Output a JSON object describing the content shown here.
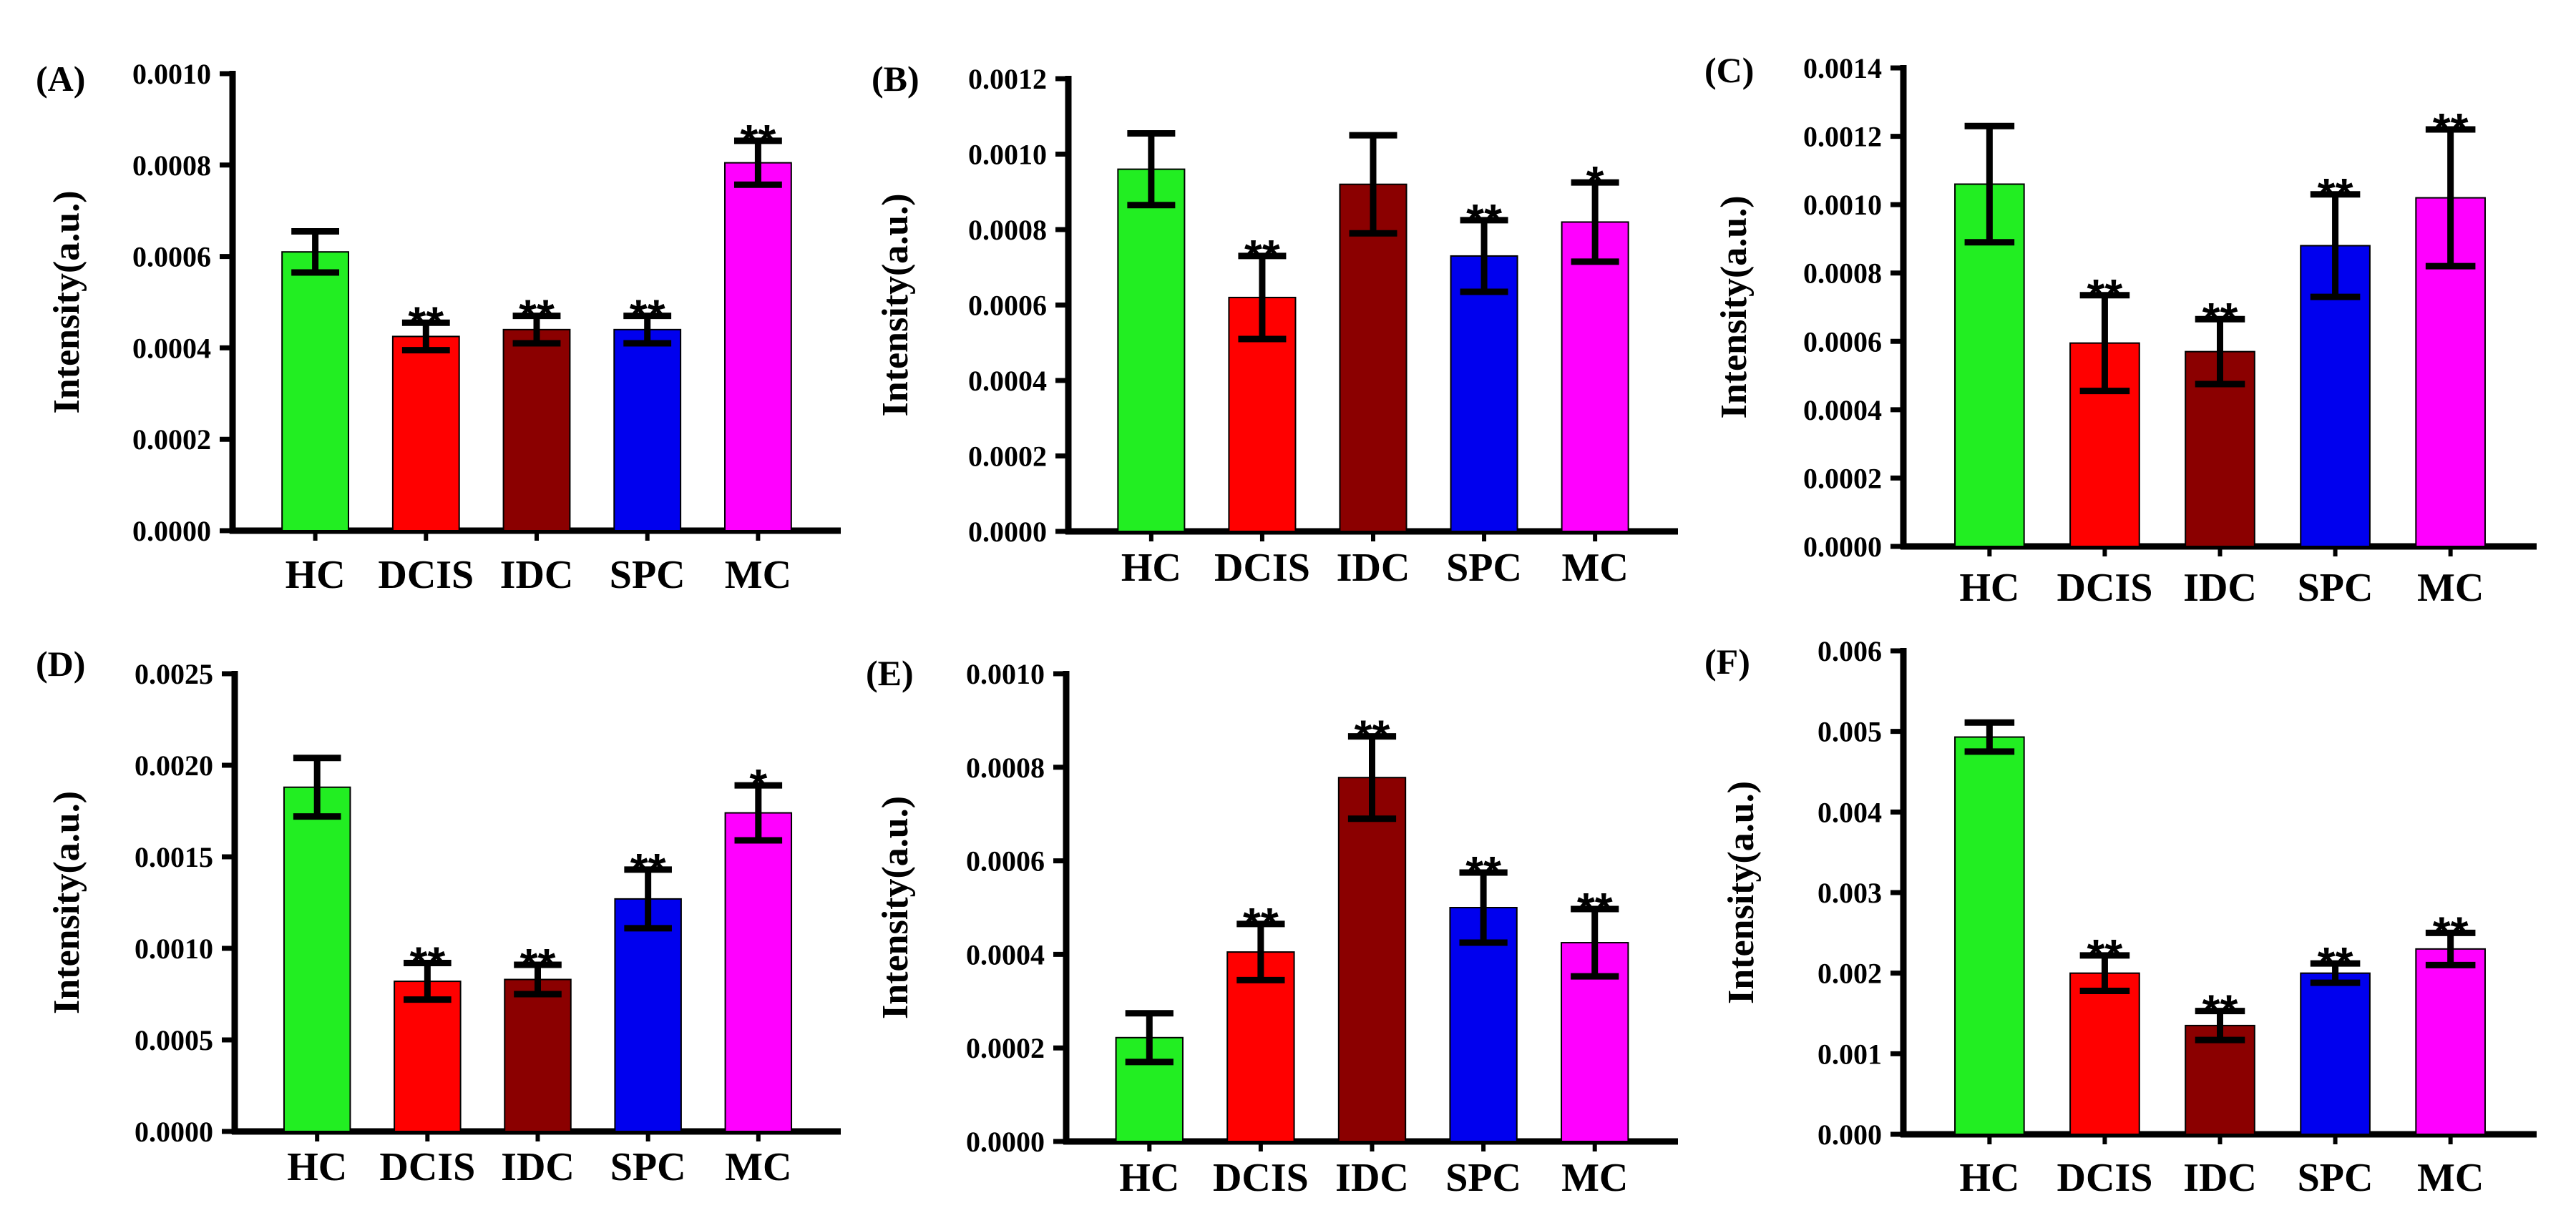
{
  "colors": {
    "HC": "#22ee22",
    "DCIS": "#ff0000",
    "IDC": "#8b0000",
    "SPC": "#0000ee",
    "MC": "#ff00ff",
    "axis": "#000000",
    "error_bar": "#000000"
  },
  "chart_data": [
    {
      "type": "bar",
      "panel": "(A)",
      "categories": [
        "HC",
        "DCIS",
        "IDC",
        "SPC",
        "MC"
      ],
      "values": [
        0.00061,
        0.000425,
        0.00044,
        0.00044,
        0.000805
      ],
      "errors": [
        4.5e-05,
        3e-05,
        3e-05,
        3e-05,
        4.8e-05
      ],
      "significance": [
        "",
        "**",
        "**",
        "**",
        "**"
      ],
      "ylabel": "Intensity(a.u.)",
      "ylim": [
        0,
        0.001
      ],
      "yticks": [
        "0.0000",
        "0.0002",
        "0.0004",
        "0.0006",
        "0.0008",
        "0.0010"
      ]
    },
    {
      "type": "bar",
      "panel": "(B)",
      "categories": [
        "HC",
        "DCIS",
        "IDC",
        "SPC",
        "MC"
      ],
      "values": [
        0.00096,
        0.00062,
        0.00092,
        0.00073,
        0.00082
      ],
      "errors": [
        9.5e-05,
        0.00011,
        0.00013,
        9.5e-05,
        0.000105
      ],
      "significance": [
        "",
        "**",
        "",
        "**",
        "*"
      ],
      "ylabel": "Intensity(a.u.)",
      "ylim": [
        0,
        0.0012
      ],
      "yticks": [
        "0.0000",
        "0.0002",
        "0.0004",
        "0.0006",
        "0.0008",
        "0.0010",
        "0.0012"
      ]
    },
    {
      "type": "bar",
      "panel": "(C)",
      "categories": [
        "HC",
        "DCIS",
        "IDC",
        "SPC",
        "MC"
      ],
      "values": [
        0.00106,
        0.000595,
        0.00057,
        0.00088,
        0.00102
      ],
      "errors": [
        0.00017,
        0.00014,
        9.5e-05,
        0.00015,
        0.0002
      ],
      "significance": [
        "",
        "**",
        "**",
        "**",
        "**"
      ],
      "ylabel": "Intensity(a.u.)",
      "ylim": [
        0,
        0.0014
      ],
      "yticks": [
        "0.0000",
        "0.0002",
        "0.0004",
        "0.0006",
        "0.0008",
        "0.0010",
        "0.0012",
        "0.0014"
      ]
    },
    {
      "type": "bar",
      "panel": "(D)",
      "categories": [
        "HC",
        "DCIS",
        "IDC",
        "SPC",
        "MC"
      ],
      "values": [
        0.00188,
        0.00082,
        0.00083,
        0.00127,
        0.00174
      ],
      "errors": [
        0.00016,
        0.0001,
        8e-05,
        0.00016,
        0.00015
      ],
      "significance": [
        "",
        "**",
        "**",
        "**",
        "*"
      ],
      "ylabel": "Intensity(a.u.)",
      "ylim": [
        0,
        0.0025
      ],
      "yticks": [
        "0.0000",
        "0.0005",
        "0.0010",
        "0.0015",
        "0.0020",
        "0.0025"
      ]
    },
    {
      "type": "bar",
      "panel": "(E)",
      "categories": [
        "HC",
        "DCIS",
        "IDC",
        "SPC",
        "MC"
      ],
      "values": [
        0.000222,
        0.000405,
        0.000778,
        0.0005,
        0.000425
      ],
      "errors": [
        5.2e-05,
        6e-05,
        8.8e-05,
        7.5e-05,
        7.2e-05
      ],
      "significance": [
        "",
        "**",
        "**",
        "**",
        "**"
      ],
      "ylabel": "Intensity(a.u.)",
      "ylim": [
        0,
        0.001
      ],
      "yticks": [
        "0.0000",
        "0.0002",
        "0.0004",
        "0.0006",
        "0.0008",
        "0.0010"
      ]
    },
    {
      "type": "bar",
      "panel": "(F)",
      "categories": [
        "HC",
        "DCIS",
        "IDC",
        "SPC",
        "MC"
      ],
      "values": [
        0.00493,
        0.002,
        0.00135,
        0.002,
        0.0023
      ],
      "errors": [
        0.00018,
        0.00022,
        0.00018,
        0.00012,
        0.0002
      ],
      "significance": [
        "",
        "**",
        "**",
        "**",
        "**"
      ],
      "ylabel": "Intensity(a.u.)",
      "ylim": [
        0,
        0.006
      ],
      "yticks": [
        "0.000",
        "0.001",
        "0.002",
        "0.003",
        "0.004",
        "0.005",
        "0.006"
      ]
    }
  ]
}
